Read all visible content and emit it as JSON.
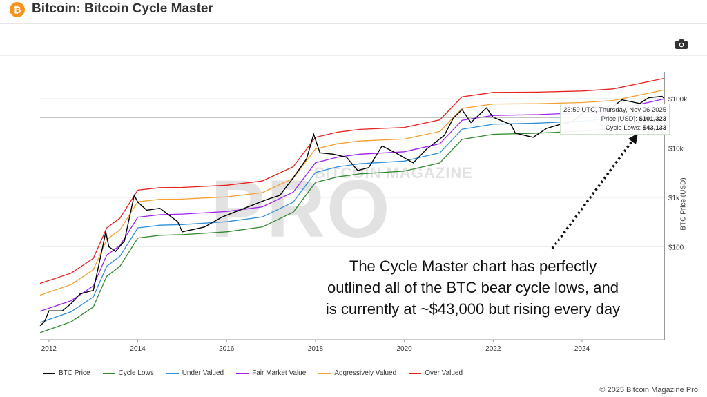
{
  "header": {
    "title": "Bitcoin: Bitcoin Cycle Master",
    "logo_glyph": "₿"
  },
  "toolbar": {
    "camera_icon": "camera-icon"
  },
  "watermark": {
    "top": "BITCOIN MAGAZINE",
    "main": "PRO"
  },
  "tooltip": {
    "time": "23:59 UTC, Thursday, Nov 06 2025",
    "price_label": "Price [USD]: ",
    "price_value": "$101,323",
    "lows_label": "Cycle Lows: ",
    "lows_value": "$43,133"
  },
  "annotation": {
    "line1": "The Cycle Master chart has perfectly",
    "line2": "outlined all of the BTC bear cycle lows, and",
    "line3": "is currently at ~$43,000 but rising every day"
  },
  "copyright": "© 2025 Bitcoin Magazine Pro.",
  "chart_data": {
    "type": "line",
    "title": "Bitcoin: Bitcoin Cycle Master",
    "xlabel": "",
    "ylabel": "BTC Price (USD)",
    "yscale": "log",
    "xlim": [
      2011.8,
      2025.85
    ],
    "ylim": [
      1.3,
      340000
    ],
    "x_ticks": [
      "2012",
      "2014",
      "2016",
      "2018",
      "2020",
      "2022",
      "2024"
    ],
    "x_tick_values": [
      2012,
      2014,
      2016,
      2018,
      2020,
      2022,
      2024
    ],
    "y_ticks": [
      "$100k",
      "$10k",
      "$1k",
      "$100"
    ],
    "y_tick_values": [
      100000,
      10000,
      1000,
      100
    ],
    "legend_position": "bottom",
    "series": [
      {
        "name": "BTC Price",
        "color": "#000000",
        "x": [
          2011.8,
          2011.9,
          2012.0,
          2012.3,
          2012.5,
          2012.7,
          2013.0,
          2013.2,
          2013.28,
          2013.35,
          2013.5,
          2013.7,
          2013.92,
          2014.0,
          2014.2,
          2014.5,
          2014.9,
          2015.0,
          2015.5,
          2015.9,
          2016.5,
          2016.9,
          2017.2,
          2017.5,
          2017.8,
          2017.96,
          2018.1,
          2018.4,
          2018.7,
          2018.95,
          2019.2,
          2019.5,
          2019.8,
          2020.2,
          2020.5,
          2020.9,
          2021.1,
          2021.3,
          2021.5,
          2021.85,
          2022.0,
          2022.4,
          2022.5,
          2022.9,
          2023.2,
          2023.5,
          2023.8,
          2024.2,
          2024.6,
          2024.9,
          2025.3,
          2025.5,
          2025.8,
          2025.85
        ],
        "values": [
          2.5,
          3,
          5,
          5,
          7,
          11,
          13,
          90,
          200,
          100,
          80,
          130,
          1100,
          800,
          550,
          600,
          320,
          200,
          250,
          400,
          650,
          900,
          1100,
          2500,
          6000,
          19000,
          8000,
          7500,
          6500,
          3500,
          4000,
          11000,
          8000,
          5000,
          9500,
          18000,
          40000,
          60000,
          33000,
          65000,
          42000,
          30000,
          20000,
          16500,
          25000,
          30000,
          35000,
          70000,
          60000,
          95000,
          80000,
          105000,
          112000,
          101323
        ]
      },
      {
        "name": "Cycle Lows",
        "color": "#2e8b2e",
        "x": [
          2011.8,
          2012.5,
          2013.0,
          2013.3,
          2013.6,
          2014.0,
          2014.5,
          2015.0,
          2016.0,
          2016.8,
          2017.5,
          2018.0,
          2018.5,
          2019.0,
          2020.0,
          2020.8,
          2021.3,
          2022.0,
          2023.0,
          2024.0,
          2024.7,
          2025.85
        ],
        "values": [
          1.8,
          3,
          6,
          25,
          40,
          150,
          170,
          175,
          200,
          250,
          500,
          2000,
          2600,
          3000,
          3400,
          5000,
          15000,
          19000,
          20000,
          22000,
          25000,
          43133
        ]
      },
      {
        "name": "Under Valued",
        "color": "#2f8fdc",
        "x": [
          2011.8,
          2012.5,
          2013.0,
          2013.3,
          2013.6,
          2014.0,
          2014.5,
          2015.0,
          2016.0,
          2016.8,
          2017.5,
          2018.0,
          2018.5,
          2019.0,
          2020.0,
          2020.8,
          2021.3,
          2022.0,
          2023.0,
          2024.0,
          2024.7,
          2025.85
        ],
        "values": [
          2.9,
          4.8,
          9.6,
          40,
          64,
          240,
          272,
          280,
          320,
          400,
          800,
          3200,
          4160,
          4800,
          5440,
          8000,
          24000,
          30400,
          32000,
          35200,
          40000,
          69000
        ]
      },
      {
        "name": "Fair Market Value",
        "color": "#a020f0",
        "x": [
          2011.8,
          2012.5,
          2013.0,
          2013.3,
          2013.6,
          2014.0,
          2014.5,
          2015.0,
          2016.0,
          2016.8,
          2017.5,
          2018.0,
          2018.5,
          2019.0,
          2020.0,
          2020.8,
          2021.3,
          2022.0,
          2023.0,
          2024.0,
          2024.7,
          2025.85
        ],
        "values": [
          4.9,
          8,
          16,
          67,
          106,
          396,
          445,
          457,
          516,
          640,
          1270,
          5040,
          6530,
          7500,
          8400,
          12200,
          36500,
          45800,
          47600,
          51700,
          58300,
          99200
        ]
      },
      {
        "name": "Aggressively Valued",
        "color": "#f5a030",
        "x": [
          2011.8,
          2012.5,
          2013.0,
          2013.3,
          2013.6,
          2014.0,
          2014.5,
          2015.0,
          2016.0,
          2016.8,
          2017.5,
          2018.0,
          2018.5,
          2019.0,
          2020.0,
          2020.8,
          2021.3,
          2022.0,
          2023.0,
          2024.0,
          2024.7,
          2025.85
        ],
        "values": [
          10.4,
          17,
          34,
          139,
          220,
          815,
          911,
          922,
          1022,
          1243,
          2430,
          9580,
          12220,
          13890,
          15200,
          21650,
          63600,
          78300,
          79200,
          83600,
          92000,
          151000
        ]
      },
      {
        "name": "Over Valued",
        "color": "#e8201c",
        "x": [
          2011.8,
          2012.5,
          2013.0,
          2013.3,
          2013.6,
          2014.0,
          2014.5,
          2015.0,
          2016.0,
          2016.8,
          2017.5,
          2018.0,
          2018.5,
          2019.0,
          2020.0,
          2020.8,
          2021.3,
          2022.0,
          2023.0,
          2024.0,
          2024.7,
          2025.85
        ],
        "values": [
          18,
          29,
          58,
          239,
          379,
          1404,
          1571,
          1589,
          1760,
          2140,
          4180,
          16480,
          21000,
          23880,
          26100,
          37200,
          109200,
          134500,
          136000,
          143400,
          158000,
          258800
        ]
      }
    ]
  }
}
